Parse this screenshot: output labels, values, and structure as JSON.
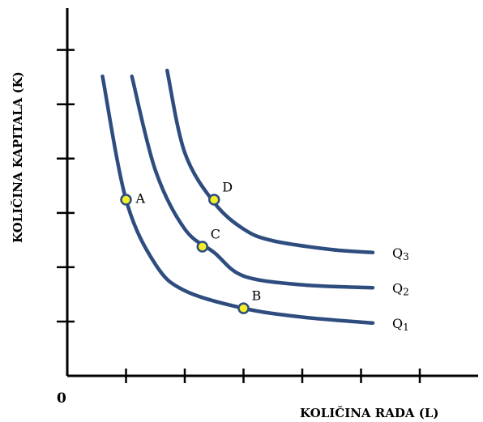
{
  "chart_data": {
    "type": "line",
    "title": "",
    "xlabel": "KOLIČINA RADA (L)",
    "ylabel": "KOLIČINA KAPITALA (K)",
    "origin_label": "0",
    "x_ticks": 6,
    "y_ticks": 6,
    "xlim": [
      0,
      7
    ],
    "ylim": [
      0,
      7
    ],
    "series": [
      {
        "name": "Q1",
        "label_main": "Q",
        "label_sub": "1",
        "x": [
          0.6,
          1.0,
          1.5,
          2.0,
          3.0,
          4.0,
          5.2
        ],
        "y": [
          5.1,
          3.0,
          1.9,
          1.45,
          1.15,
          1.0,
          0.9
        ],
        "color": "#2e4d7e"
      },
      {
        "name": "Q2",
        "label_main": "Q",
        "label_sub": "2",
        "x": [
          1.1,
          1.5,
          2.0,
          2.5,
          3.0,
          4.0,
          5.2
        ],
        "y": [
          5.1,
          3.5,
          2.5,
          2.1,
          1.7,
          1.55,
          1.5
        ],
        "color": "#2e4d7e"
      },
      {
        "name": "Q3",
        "label_main": "Q",
        "label_sub": "3",
        "x": [
          1.7,
          2.0,
          2.5,
          3.0,
          3.5,
          4.5,
          5.2
        ],
        "y": [
          5.2,
          3.8,
          2.95,
          2.5,
          2.3,
          2.15,
          2.1
        ],
        "color": "#2e4d7e"
      }
    ],
    "points": [
      {
        "label": "A",
        "x": 1.0,
        "y": 3.0
      },
      {
        "label": "B",
        "x": 3.0,
        "y": 1.15
      },
      {
        "label": "C",
        "x": 2.3,
        "y": 2.2
      },
      {
        "label": "D",
        "x": 2.5,
        "y": 3.0
      }
    ],
    "grid": false,
    "legend": "none"
  }
}
